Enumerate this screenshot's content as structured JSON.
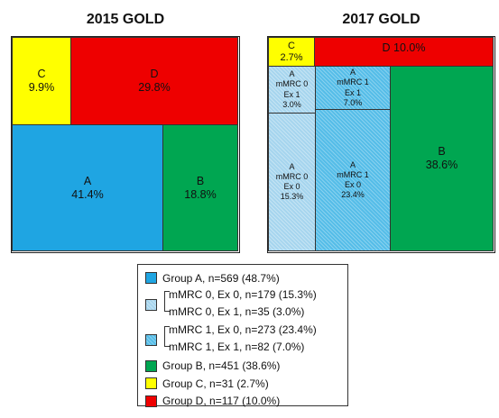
{
  "titles": {
    "left": "2015 GOLD",
    "right": "2017 GOLD"
  },
  "gold2015": {
    "c": {
      "name": "C",
      "pct": "9.9%"
    },
    "d": {
      "name": "D",
      "pct": "29.8%"
    },
    "a": {
      "name": "A",
      "pct": "41.4%"
    },
    "b": {
      "name": "B",
      "pct": "18.8%"
    }
  },
  "gold2017": {
    "c": {
      "name": "C",
      "pct": "2.7%"
    },
    "d": {
      "label": "D 10.0%"
    },
    "a_m0_ex1": {
      "name": "A",
      "l2": "mMRC 0",
      "l3": "Ex 1",
      "pct": "3.0%"
    },
    "a_m1_ex1": {
      "name": "A",
      "l2": "mMRC 1",
      "l3": "Ex 1",
      "pct": "7.0%"
    },
    "a_m0_ex0": {
      "name": "A",
      "l2": "mMRC 0",
      "l3": "Ex 0",
      "pct": "15.3%"
    },
    "a_m1_ex0": {
      "name": "A",
      "l2": "mMRC 1",
      "l3": "Ex 0",
      "pct": "23.4%"
    },
    "b": {
      "name": "B",
      "pct": "38.6%"
    }
  },
  "colors": {
    "group_a": "#1fa5e2",
    "mmrc0": "#a6d5ee",
    "mmrc1": "#55bde8",
    "group_b": "#00a651",
    "group_c": "#ffff00",
    "group_d": "#ee0000"
  },
  "legend": {
    "group_a": "Group A, n=569 (48.7%)",
    "mmrc0_ex0": "mMRC 0, Ex 0, n=179 (15.3%)",
    "mmrc0_ex1": "mMRC 0, Ex 1, n=35 (3.0%)",
    "mmrc1_ex0": "mMRC 1, Ex 0, n=273 (23.4%)",
    "mmrc1_ex1": "mMRC 1, Ex 1, n=82 (7.0%)",
    "group_b": "Group B, n=451 (38.6%)",
    "group_c": "Group C, n=31 (2.7%)",
    "group_d": "Group D, n=117 (10.0%)"
  }
}
